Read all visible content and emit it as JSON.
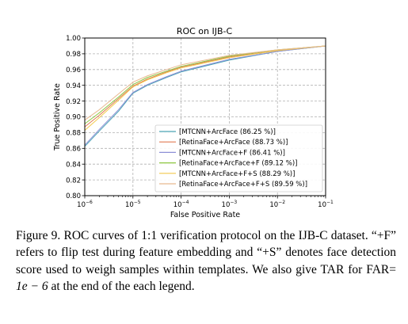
{
  "colors": {
    "axes": "#000000",
    "grid": "#b0b0b0",
    "legend_border": "#cccccc"
  },
  "caption": {
    "label": "Figure 9.",
    "text_before_math": "ROC curves of 1:1 verification protocol on the IJB-C dataset. “+F” refers to flip test during feature embedding and “+S” denotes face detection score used to weigh samples within templates. We also give TAR for FAR=",
    "math": "1e − 6",
    "text_after_math": "at the end of the each legend."
  },
  "chart_data": {
    "type": "line",
    "title": "ROC on IJB-C",
    "xlabel": "False Positive Rate",
    "ylabel": "True Positive Rate",
    "xscale": "log",
    "xlim": [
      1e-06,
      0.1
    ],
    "ylim": [
      0.8,
      1.0
    ],
    "grid": true,
    "grid_style": "dashed",
    "legend_position": "lower-right",
    "x_ticks": [
      {
        "value": 1e-06,
        "base": "10",
        "exp": "−6"
      },
      {
        "value": 1e-05,
        "base": "10",
        "exp": "−5"
      },
      {
        "value": 0.0001,
        "base": "10",
        "exp": "−4"
      },
      {
        "value": 0.001,
        "base": "10",
        "exp": "−3"
      },
      {
        "value": 0.01,
        "base": "10",
        "exp": "−2"
      },
      {
        "value": 0.1,
        "base": "10",
        "exp": "−1"
      }
    ],
    "y_ticks": [
      {
        "value": 0.8,
        "label": "0.80"
      },
      {
        "value": 0.82,
        "label": "0.82"
      },
      {
        "value": 0.84,
        "label": "0.84"
      },
      {
        "value": 0.86,
        "label": "0.86"
      },
      {
        "value": 0.88,
        "label": "0.88"
      },
      {
        "value": 0.9,
        "label": "0.90"
      },
      {
        "value": 0.92,
        "label": "0.92"
      },
      {
        "value": 0.94,
        "label": "0.94"
      },
      {
        "value": 0.96,
        "label": "0.96"
      },
      {
        "value": 0.98,
        "label": "0.98"
      },
      {
        "value": 1.0,
        "label": "1.00"
      }
    ],
    "series": [
      {
        "name": "[MTCNN+ArcFace (86.25 %)]",
        "color": "#4aa3b5",
        "x": [
          1e-06,
          2e-06,
          5e-06,
          1e-05,
          2e-05,
          5e-05,
          0.0001,
          0.001,
          0.01,
          0.1
        ],
        "y": [
          0.8625,
          0.882,
          0.907,
          0.93,
          0.94,
          0.95,
          0.957,
          0.972,
          0.983,
          0.99
        ]
      },
      {
        "name": "[RetinaFace+ArcFace (88.73 %)]",
        "color": "#e07b53",
        "x": [
          1e-06,
          2e-06,
          5e-06,
          1e-05,
          2e-05,
          5e-05,
          0.0001,
          0.001,
          0.01,
          0.1
        ],
        "y": [
          0.8873,
          0.902,
          0.923,
          0.939,
          0.948,
          0.957,
          0.963,
          0.976,
          0.984,
          0.99
        ]
      },
      {
        "name": "[MTCNN+ArcFace+F (86.41 %)]",
        "color": "#8d8fd6",
        "x": [
          1e-06,
          2e-06,
          5e-06,
          1e-05,
          2e-05,
          5e-05,
          0.0001,
          0.001,
          0.01,
          0.1
        ],
        "y": [
          0.8641,
          0.884,
          0.909,
          0.931,
          0.941,
          0.951,
          0.958,
          0.973,
          0.983,
          0.99
        ]
      },
      {
        "name": "[RetinaFace+ArcFace+F (89.12 %)]",
        "color": "#8cc63f",
        "x": [
          1e-06,
          2e-06,
          5e-06,
          1e-05,
          2e-05,
          5e-05,
          0.0001,
          0.001,
          0.01,
          0.1
        ],
        "y": [
          0.8912,
          0.905,
          0.925,
          0.941,
          0.95,
          0.958,
          0.964,
          0.977,
          0.985,
          0.99
        ]
      },
      {
        "name": "[MTCNN+ArcFace+F+S (88.29 %)]",
        "color": "#f2c94c",
        "x": [
          1e-06,
          2e-06,
          5e-06,
          1e-05,
          2e-05,
          5e-05,
          0.0001,
          0.001,
          0.01,
          0.1
        ],
        "y": [
          0.8829,
          0.899,
          0.921,
          0.938,
          0.947,
          0.956,
          0.962,
          0.975,
          0.984,
          0.99
        ]
      },
      {
        "name": "[RetinaFace+ArcFace+F+S (89.59 %)]",
        "color": "#e8b98f",
        "x": [
          1e-06,
          2e-06,
          5e-06,
          1e-05,
          2e-05,
          5e-05,
          0.0001,
          0.001,
          0.01,
          0.1
        ],
        "y": [
          0.8959,
          0.909,
          0.929,
          0.944,
          0.952,
          0.96,
          0.966,
          0.978,
          0.985,
          0.99
        ]
      }
    ]
  }
}
